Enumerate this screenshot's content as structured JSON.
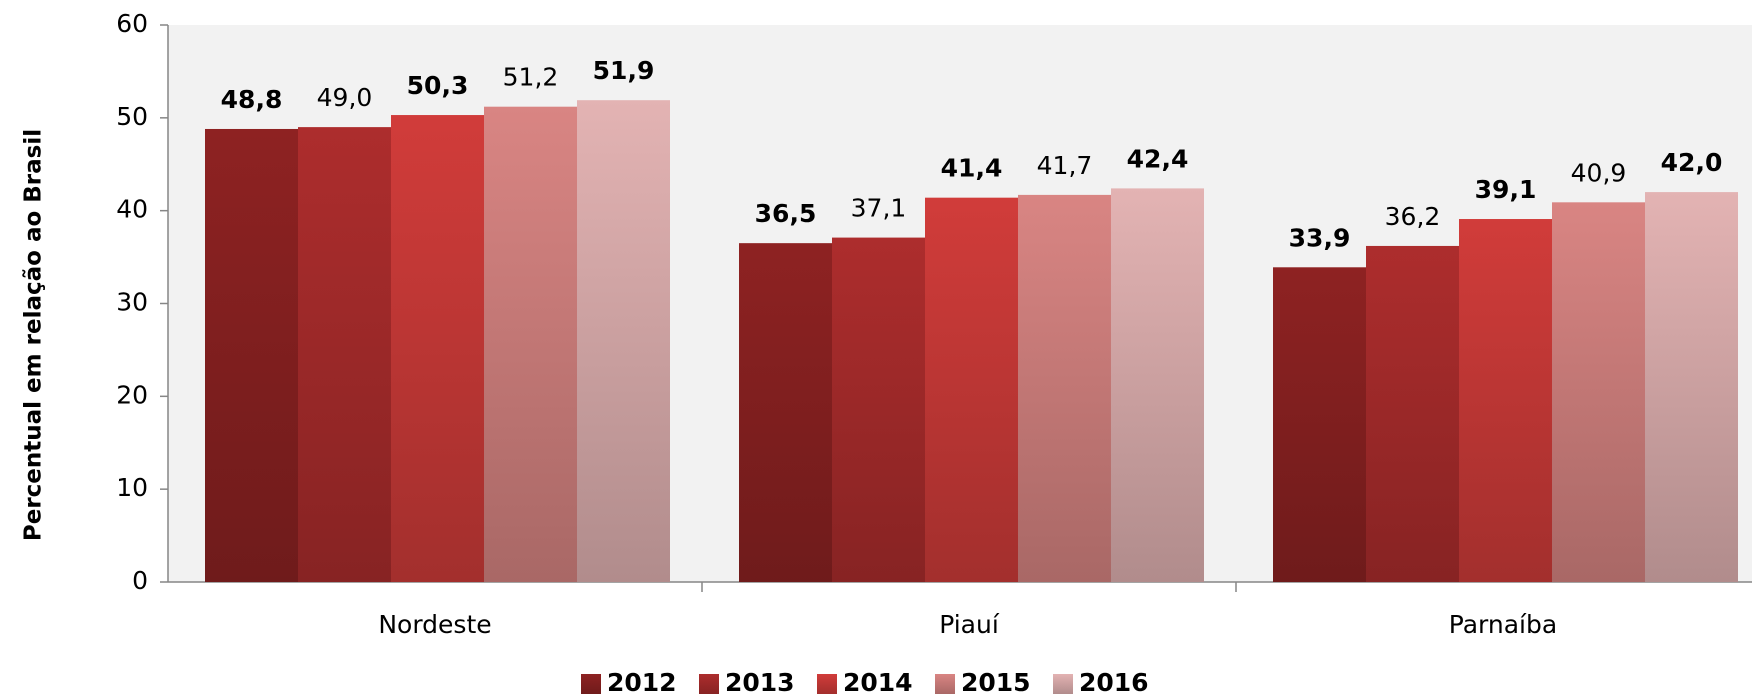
{
  "chart_data": {
    "type": "bar",
    "y_label": "Percentual em relação ao Brasil",
    "categories": [
      "Nordeste",
      "Piauí",
      "Parnaíba"
    ],
    "series": [
      {
        "name": "2012",
        "color": "#8e2222",
        "label_bold": true,
        "values": [
          48.8,
          36.5,
          33.9
        ],
        "value_labels": [
          "48,8",
          "36,5",
          "33,9"
        ]
      },
      {
        "name": "2013",
        "color": "#ad2d2d",
        "label_bold": false,
        "values": [
          49.0,
          37.1,
          36.2
        ],
        "value_labels": [
          "49,0",
          "37,1",
          "36,2"
        ]
      },
      {
        "name": "2014",
        "color": "#d13c3a",
        "label_bold": true,
        "values": [
          50.3,
          41.4,
          39.1
        ],
        "value_labels": [
          "50,3",
          "41,4",
          "39,1"
        ]
      },
      {
        "name": "2015",
        "color": "#d98583",
        "label_bold": false,
        "values": [
          51.2,
          41.7,
          40.9
        ],
        "value_labels": [
          "51,2",
          "41,7",
          "40,9"
        ]
      },
      {
        "name": "2016",
        "color": "#e3b3b3",
        "label_bold": true,
        "values": [
          51.9,
          42.4,
          42.0
        ],
        "value_labels": [
          "51,9",
          "42,4",
          "42,0"
        ]
      }
    ],
    "ylim": [
      0,
      60
    ],
    "yticks": [
      0,
      10,
      20,
      30,
      40,
      50,
      60
    ],
    "legend": "bottom"
  }
}
